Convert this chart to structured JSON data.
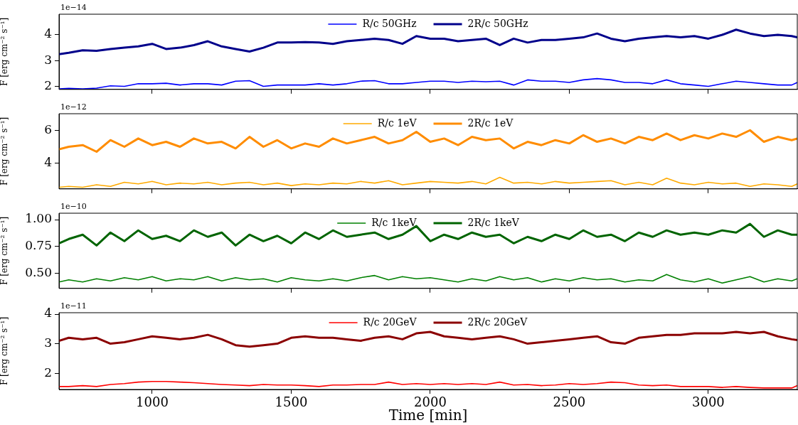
{
  "chart_data": [
    {
      "type": "line",
      "annotations": [
        "1e−14"
      ],
      "ylabel": "F [erg cm⁻² s⁻¹]",
      "legend": "top",
      "marker": "none",
      "tick_labels": "y",
      "xlim": [
        665,
        3320
      ],
      "xticks": [
        1000,
        1500,
        2000,
        2500,
        3000
      ],
      "ylim": [
        1.88,
        4.8
      ],
      "yticks": [
        2,
        3,
        4
      ],
      "x": [
        665,
        700,
        750,
        800,
        850,
        900,
        950,
        1000,
        1050,
        1100,
        1150,
        1200,
        1250,
        1300,
        1350,
        1400,
        1450,
        1500,
        1550,
        1600,
        1650,
        1700,
        1750,
        1800,
        1850,
        1900,
        1950,
        2000,
        2050,
        2100,
        2150,
        2200,
        2250,
        2300,
        2350,
        2400,
        2450,
        2500,
        2550,
        2600,
        2650,
        2700,
        2750,
        2800,
        2850,
        2900,
        2950,
        3000,
        3050,
        3100,
        3150,
        3200,
        3250,
        3300,
        3320
      ],
      "series": [
        {
          "name": "R/c 50GHz",
          "color": "#0000ff",
          "values": [
            1.9,
            1.92,
            1.9,
            1.93,
            2.02,
            2.0,
            2.1,
            2.1,
            2.12,
            2.05,
            2.1,
            2.1,
            2.05,
            2.2,
            2.22,
            2.0,
            2.05,
            2.05,
            2.05,
            2.1,
            2.05,
            2.1,
            2.2,
            2.22,
            2.1,
            2.1,
            2.15,
            2.2,
            2.2,
            2.15,
            2.2,
            2.18,
            2.2,
            2.05,
            2.25,
            2.2,
            2.2,
            2.15,
            2.25,
            2.3,
            2.25,
            2.15,
            2.15,
            2.1,
            2.25,
            2.1,
            2.05,
            2.0,
            2.1,
            2.2,
            2.15,
            2.1,
            2.05,
            2.05,
            2.15
          ]
        },
        {
          "name": "2R/c 50GHz",
          "color": "#00008b",
          "values": [
            3.25,
            3.3,
            3.4,
            3.38,
            3.45,
            3.5,
            3.55,
            3.65,
            3.45,
            3.5,
            3.6,
            3.75,
            3.55,
            3.45,
            3.35,
            3.5,
            3.7,
            3.7,
            3.72,
            3.7,
            3.65,
            3.75,
            3.8,
            3.85,
            3.8,
            3.65,
            3.95,
            3.85,
            3.85,
            3.75,
            3.8,
            3.85,
            3.6,
            3.85,
            3.7,
            3.8,
            3.8,
            3.85,
            3.9,
            4.05,
            3.85,
            3.75,
            3.85,
            3.9,
            3.95,
            3.9,
            3.95,
            3.85,
            4.0,
            4.2,
            4.05,
            3.95,
            4.0,
            3.95,
            3.9
          ]
        }
      ]
    },
    {
      "type": "line",
      "annotations": [
        "1e−12"
      ],
      "ylabel": "F [erg cm⁻² s⁻¹]",
      "legend": "top",
      "marker": "none",
      "tick_labels": "y",
      "xlim": [
        665,
        3320
      ],
      "xticks": [
        1000,
        1500,
        2000,
        2500,
        3000
      ],
      "ylim": [
        2.45,
        7
      ],
      "yticks": [
        4,
        6
      ],
      "x": [
        665,
        700,
        750,
        800,
        850,
        900,
        950,
        1000,
        1050,
        1100,
        1150,
        1200,
        1250,
        1300,
        1350,
        1400,
        1450,
        1500,
        1550,
        1600,
        1650,
        1700,
        1750,
        1800,
        1850,
        1900,
        1950,
        2000,
        2050,
        2100,
        2150,
        2200,
        2250,
        2300,
        2350,
        2400,
        2450,
        2500,
        2550,
        2600,
        2650,
        2700,
        2750,
        2800,
        2850,
        2900,
        2950,
        3000,
        3050,
        3100,
        3150,
        3200,
        3250,
        3300,
        3320
      ],
      "series": [
        {
          "name": "R/c 1eV",
          "color": "#ffaa00",
          "values": [
            2.55,
            2.6,
            2.55,
            2.7,
            2.6,
            2.85,
            2.75,
            2.9,
            2.7,
            2.8,
            2.75,
            2.85,
            2.7,
            2.8,
            2.85,
            2.7,
            2.8,
            2.65,
            2.75,
            2.7,
            2.8,
            2.75,
            2.9,
            2.8,
            2.95,
            2.7,
            2.8,
            2.9,
            2.85,
            2.8,
            2.9,
            2.75,
            3.15,
            2.8,
            2.85,
            2.75,
            2.9,
            2.8,
            2.85,
            2.9,
            2.95,
            2.7,
            2.85,
            2.7,
            3.1,
            2.8,
            2.7,
            2.85,
            2.75,
            2.8,
            2.6,
            2.75,
            2.7,
            2.6,
            2.75
          ]
        },
        {
          "name": "2R/c 1eV",
          "color": "#ff8c00",
          "values": [
            4.85,
            5.0,
            5.1,
            4.7,
            5.4,
            5.0,
            5.5,
            5.1,
            5.3,
            5.0,
            5.5,
            5.2,
            5.3,
            4.9,
            5.6,
            5.0,
            5.4,
            4.9,
            5.2,
            5.0,
            5.5,
            5.2,
            5.4,
            5.6,
            5.2,
            5.4,
            5.9,
            5.3,
            5.5,
            5.1,
            5.6,
            5.4,
            5.5,
            4.9,
            5.3,
            5.1,
            5.4,
            5.2,
            5.7,
            5.3,
            5.5,
            5.2,
            5.6,
            5.4,
            5.8,
            5.4,
            5.7,
            5.5,
            5.8,
            5.6,
            6.0,
            5.3,
            5.6,
            5.4,
            5.5
          ]
        }
      ]
    },
    {
      "type": "line",
      "annotations": [
        "1e−10"
      ],
      "ylabel": "F [erg cm⁻² s⁻¹]",
      "legend": "top",
      "marker": "none",
      "tick_labels": "y",
      "xlim": [
        665,
        3320
      ],
      "xticks": [
        1000,
        1500,
        2000,
        2500,
        3000
      ],
      "ylim": [
        0.36,
        1.06
      ],
      "yticks": [
        {
          "value": 0.5,
          "label": "0.50"
        },
        {
          "value": 0.75,
          "label": "0.75"
        },
        {
          "value": 1,
          "label": "1.00"
        }
      ],
      "x": [
        665,
        700,
        750,
        800,
        850,
        900,
        950,
        1000,
        1050,
        1100,
        1150,
        1200,
        1250,
        1300,
        1350,
        1400,
        1450,
        1500,
        1550,
        1600,
        1650,
        1700,
        1750,
        1800,
        1850,
        1900,
        1950,
        2000,
        2050,
        2100,
        2150,
        2200,
        2250,
        2300,
        2350,
        2400,
        2450,
        2500,
        2550,
        2600,
        2650,
        2700,
        2750,
        2800,
        2850,
        2900,
        2950,
        3000,
        3050,
        3100,
        3150,
        3200,
        3250,
        3300,
        3320
      ],
      "series": [
        {
          "name": "R/c 1keV",
          "color": "#008000",
          "values": [
            0.42,
            0.44,
            0.42,
            0.45,
            0.43,
            0.46,
            0.44,
            0.47,
            0.43,
            0.45,
            0.44,
            0.47,
            0.43,
            0.46,
            0.44,
            0.45,
            0.42,
            0.46,
            0.44,
            0.43,
            0.45,
            0.43,
            0.46,
            0.48,
            0.44,
            0.47,
            0.45,
            0.46,
            0.44,
            0.42,
            0.45,
            0.43,
            0.47,
            0.44,
            0.46,
            0.42,
            0.45,
            0.43,
            0.46,
            0.44,
            0.45,
            0.42,
            0.44,
            0.43,
            0.49,
            0.44,
            0.42,
            0.45,
            0.41,
            0.44,
            0.47,
            0.42,
            0.45,
            0.43,
            0.45
          ]
        },
        {
          "name": "2R/c 1keV",
          "color": "#006400",
          "values": [
            0.78,
            0.82,
            0.86,
            0.76,
            0.88,
            0.8,
            0.9,
            0.82,
            0.85,
            0.8,
            0.9,
            0.84,
            0.88,
            0.76,
            0.86,
            0.8,
            0.85,
            0.78,
            0.88,
            0.82,
            0.9,
            0.84,
            0.86,
            0.88,
            0.82,
            0.86,
            0.94,
            0.8,
            0.86,
            0.82,
            0.88,
            0.84,
            0.86,
            0.78,
            0.84,
            0.8,
            0.86,
            0.82,
            0.9,
            0.84,
            0.86,
            0.8,
            0.88,
            0.84,
            0.9,
            0.86,
            0.88,
            0.86,
            0.9,
            0.88,
            0.96,
            0.84,
            0.9,
            0.86,
            0.86
          ]
        }
      ]
    },
    {
      "type": "line",
      "annotations": [
        "1e−11"
      ],
      "ylabel": "F [erg cm⁻² s⁻¹]",
      "xlabel": "Time [min]",
      "legend": "top",
      "marker": "none",
      "xlim": [
        665,
        3320
      ],
      "xticks": [
        1000,
        1500,
        2000,
        2500,
        3000
      ],
      "ylim": [
        1.45,
        4.05
      ],
      "yticks": [
        2,
        3,
        4
      ],
      "x": [
        665,
        700,
        750,
        800,
        850,
        900,
        950,
        1000,
        1050,
        1100,
        1150,
        1200,
        1250,
        1300,
        1350,
        1400,
        1450,
        1500,
        1550,
        1600,
        1650,
        1700,
        1750,
        1800,
        1850,
        1900,
        1950,
        2000,
        2050,
        2100,
        2150,
        2200,
        2250,
        2300,
        2350,
        2400,
        2450,
        2500,
        2550,
        2600,
        2650,
        2700,
        2750,
        2800,
        2850,
        2900,
        2950,
        3000,
        3050,
        3100,
        3150,
        3200,
        3250,
        3300,
        3320
      ],
      "series": [
        {
          "name": "R/c 20GeV",
          "color": "#ff0000",
          "values": [
            1.55,
            1.55,
            1.58,
            1.55,
            1.62,
            1.65,
            1.7,
            1.72,
            1.72,
            1.7,
            1.68,
            1.65,
            1.62,
            1.6,
            1.58,
            1.62,
            1.6,
            1.6,
            1.58,
            1.55,
            1.6,
            1.6,
            1.62,
            1.62,
            1.7,
            1.62,
            1.65,
            1.62,
            1.65,
            1.62,
            1.65,
            1.62,
            1.7,
            1.6,
            1.62,
            1.58,
            1.6,
            1.65,
            1.62,
            1.65,
            1.7,
            1.68,
            1.6,
            1.58,
            1.6,
            1.55,
            1.55,
            1.55,
            1.52,
            1.55,
            1.52,
            1.5,
            1.5,
            1.5,
            1.58
          ]
        },
        {
          "name": "2R/c 20GeV",
          "color": "#8b0000",
          "values": [
            3.1,
            3.2,
            3.15,
            3.2,
            3.0,
            3.05,
            3.15,
            3.25,
            3.2,
            3.15,
            3.2,
            3.3,
            3.15,
            2.95,
            2.9,
            2.95,
            3.0,
            3.2,
            3.25,
            3.2,
            3.2,
            3.15,
            3.1,
            3.2,
            3.25,
            3.15,
            3.35,
            3.4,
            3.25,
            3.2,
            3.15,
            3.2,
            3.25,
            3.15,
            3.0,
            3.05,
            3.1,
            3.15,
            3.2,
            3.25,
            3.05,
            3.0,
            3.2,
            3.25,
            3.3,
            3.3,
            3.35,
            3.35,
            3.35,
            3.4,
            3.35,
            3.4,
            3.25,
            3.15,
            3.12
          ]
        }
      ]
    }
  ]
}
